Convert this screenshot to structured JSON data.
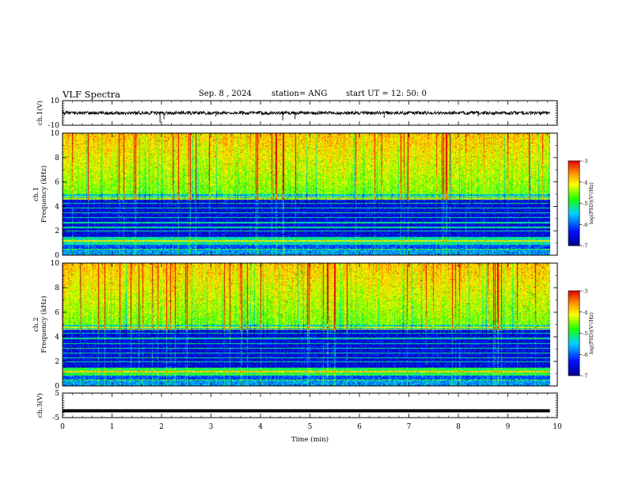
{
  "header": {
    "title": "VLF Spectra",
    "date": "Sep. 8  , 2024",
    "station": "station= ANG",
    "start": "start  UT  =   12: 50: 0"
  },
  "chart_data": [
    {
      "type": "line",
      "panel": "ch1-waveform",
      "ylabel": "ch.1(V)",
      "ylim": [
        -10,
        10
      ],
      "y_ticks": [
        "10",
        "-10"
      ],
      "xlim": [
        0,
        10
      ],
      "baseline": 0,
      "spikes": [
        {
          "x": 1.97,
          "y": -8
        },
        {
          "x": 2.05,
          "y": -5
        },
        {
          "x": 3.1,
          "y": -3
        },
        {
          "x": 4.45,
          "y": -6
        },
        {
          "x": 4.7,
          "y": -5
        },
        {
          "x": 6.5,
          "y": -4
        },
        {
          "x": 8.4,
          "y": -3
        }
      ]
    },
    {
      "type": "heatmap",
      "panel": "ch1-spectrogram",
      "ylabel": "ch.1\nFrequency (kHz)",
      "ylabel_lines": [
        "ch.1",
        "Frequency  (kHz)"
      ],
      "ylim": [
        0,
        10
      ],
      "y_ticks": [
        "0",
        "2",
        "4",
        "6",
        "8",
        "10"
      ],
      "xlim": [
        0,
        10
      ],
      "data_end_min": 9.85,
      "colorbar": {
        "range": [
          -7,
          -3
        ],
        "ticks": [
          "-3",
          "-4",
          "-5",
          "-6",
          "-7"
        ],
        "label": "log(PSD)(V²/Hz)"
      }
    },
    {
      "type": "heatmap",
      "panel": "ch2-spectrogram",
      "ylabel": "ch.2\nFrequency (kHz)",
      "ylabel_lines": [
        "ch.2",
        "Frequency  (kHz)"
      ],
      "ylim": [
        0,
        10
      ],
      "y_ticks": [
        "0",
        "2",
        "4",
        "6",
        "8",
        "10"
      ],
      "xlim": [
        0,
        10
      ],
      "data_end_min": 9.85,
      "colorbar": {
        "range": [
          -7,
          -3
        ],
        "ticks": [
          "-3",
          "-4",
          "-5",
          "-6",
          "-7"
        ],
        "label": "log(PSD)(V²/Hz)"
      }
    },
    {
      "type": "line",
      "panel": "ch3-waveform",
      "ylabel": "ch.3(V)",
      "ylim": [
        -5,
        5
      ],
      "y_ticks": [
        "5",
        "-5"
      ],
      "xlim": [
        0,
        10
      ],
      "baseline": -2.2
    }
  ],
  "x_axis": {
    "label": "Time  (min)",
    "ticks": [
      "0",
      "1",
      "2",
      "3",
      "4",
      "5",
      "6",
      "7",
      "8",
      "9",
      "10"
    ]
  },
  "colors": {
    "colormap": [
      "#00008c",
      "#0010ff",
      "#00d2ff",
      "#1eff00",
      "#ffff00",
      "#ff8c00",
      "#e60000"
    ]
  }
}
